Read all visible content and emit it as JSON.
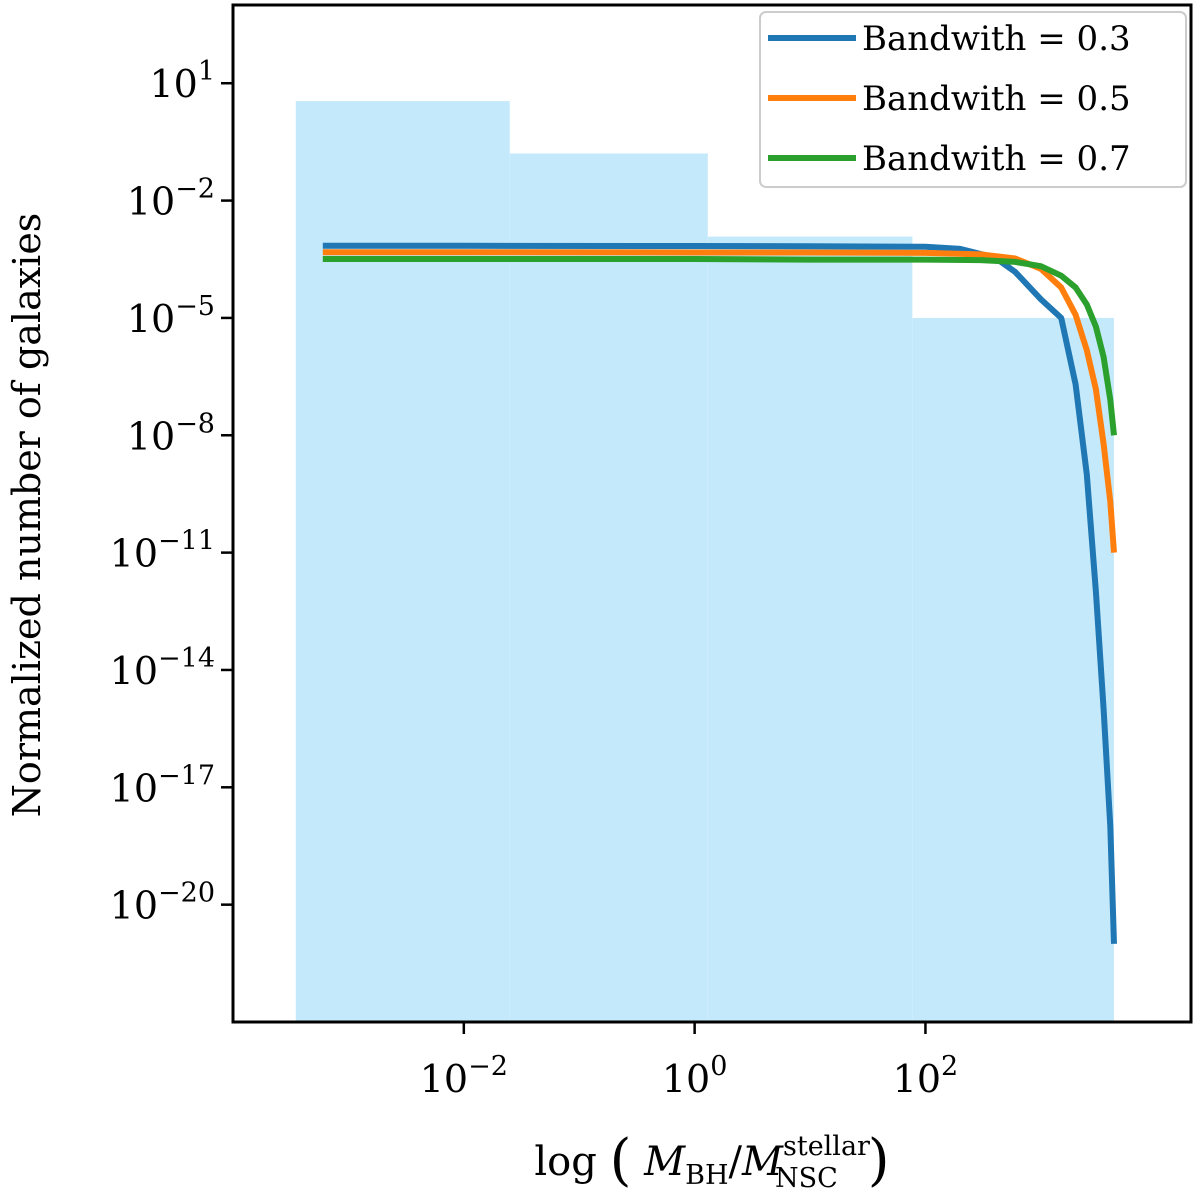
{
  "chart_data": {
    "type": "line",
    "title": "",
    "xlabel_parts": {
      "prefix": "log",
      "numerator": "M",
      "numerator_sub": "BH",
      "slash": "/",
      "denominator": "M",
      "denominator_sub": "NSC",
      "denominator_sup": "stellar"
    },
    "ylabel": "Normalized number of galaxies",
    "x_scale": "log",
    "y_scale": "log",
    "xlim": [
      0.0001,
      20000
    ],
    "ylim": [
      1e-23,
      1000
    ],
    "grid": false,
    "legend_position": "top-right",
    "x_ticks": [
      {
        "value": 0.01,
        "base": "10",
        "exp": "−2"
      },
      {
        "value": 1,
        "base": "10",
        "exp": "0"
      },
      {
        "value": 100,
        "base": "10",
        "exp": "2"
      }
    ],
    "y_ticks": [
      {
        "value": 10,
        "base": "10",
        "exp": "1"
      },
      {
        "value": 0.01,
        "base": "10",
        "exp": "−2"
      },
      {
        "value": 1e-05,
        "base": "10",
        "exp": "−5"
      },
      {
        "value": 1e-08,
        "base": "10",
        "exp": "−8"
      },
      {
        "value": 1e-11,
        "base": "10",
        "exp": "−11"
      },
      {
        "value": 1e-14,
        "base": "10",
        "exp": "−14"
      },
      {
        "value": 1e-17,
        "base": "10",
        "exp": "−17"
      },
      {
        "value": 1e-20,
        "base": "10",
        "exp": "−20"
      }
    ],
    "histogram": {
      "color": "#c4e9fb",
      "bins": [
        {
          "x0": 0.00035,
          "x1": 0.025,
          "value": 3.5
        },
        {
          "x0": 0.025,
          "x1": 1.3,
          "value": 0.16
        },
        {
          "x0": 1.3,
          "x1": 77,
          "value": 0.0012
        },
        {
          "x0": 77,
          "x1": 4300,
          "value": 1e-05
        }
      ]
    },
    "series": [
      {
        "name": "Bandwith = 0.3",
        "color": "#1f77b4",
        "x": [
          0.0006,
          0.01,
          1,
          10,
          100,
          200,
          400,
          600,
          1000,
          1500,
          2000,
          2500,
          3000,
          3500,
          4000,
          4300
        ],
        "y": [
          0.0007,
          0.0007,
          0.00069,
          0.00068,
          0.00066,
          0.00058,
          0.00035,
          0.00015,
          3e-05,
          1e-05,
          2e-07,
          1e-09,
          1e-12,
          1e-15,
          1e-18,
          1e-21
        ]
      },
      {
        "name": "Bandwith = 0.5",
        "color": "#ff7f0e",
        "x": [
          0.0006,
          0.01,
          1,
          10,
          100,
          300,
          600,
          1000,
          1500,
          2000,
          2500,
          3000,
          3500,
          4000,
          4300
        ],
        "y": [
          0.00048,
          0.00048,
          0.00047,
          0.00047,
          0.00046,
          0.00042,
          0.00033,
          0.00018,
          6e-05,
          1.2e-05,
          1.5e-06,
          1.5e-07,
          6e-09,
          2e-10,
          1e-11
        ]
      },
      {
        "name": "Bandwith = 0.7",
        "color": "#2ca02c",
        "x": [
          0.0006,
          0.01,
          1,
          10,
          100,
          300,
          600,
          1000,
          1500,
          2000,
          2500,
          3000,
          3500,
          4000,
          4300
        ],
        "y": [
          0.00032,
          0.00032,
          0.00032,
          0.00031,
          0.00031,
          0.0003,
          0.00027,
          0.00021,
          0.00012,
          6e-05,
          2.2e-05,
          6e-06,
          1e-06,
          8e-08,
          1e-08
        ]
      }
    ]
  }
}
